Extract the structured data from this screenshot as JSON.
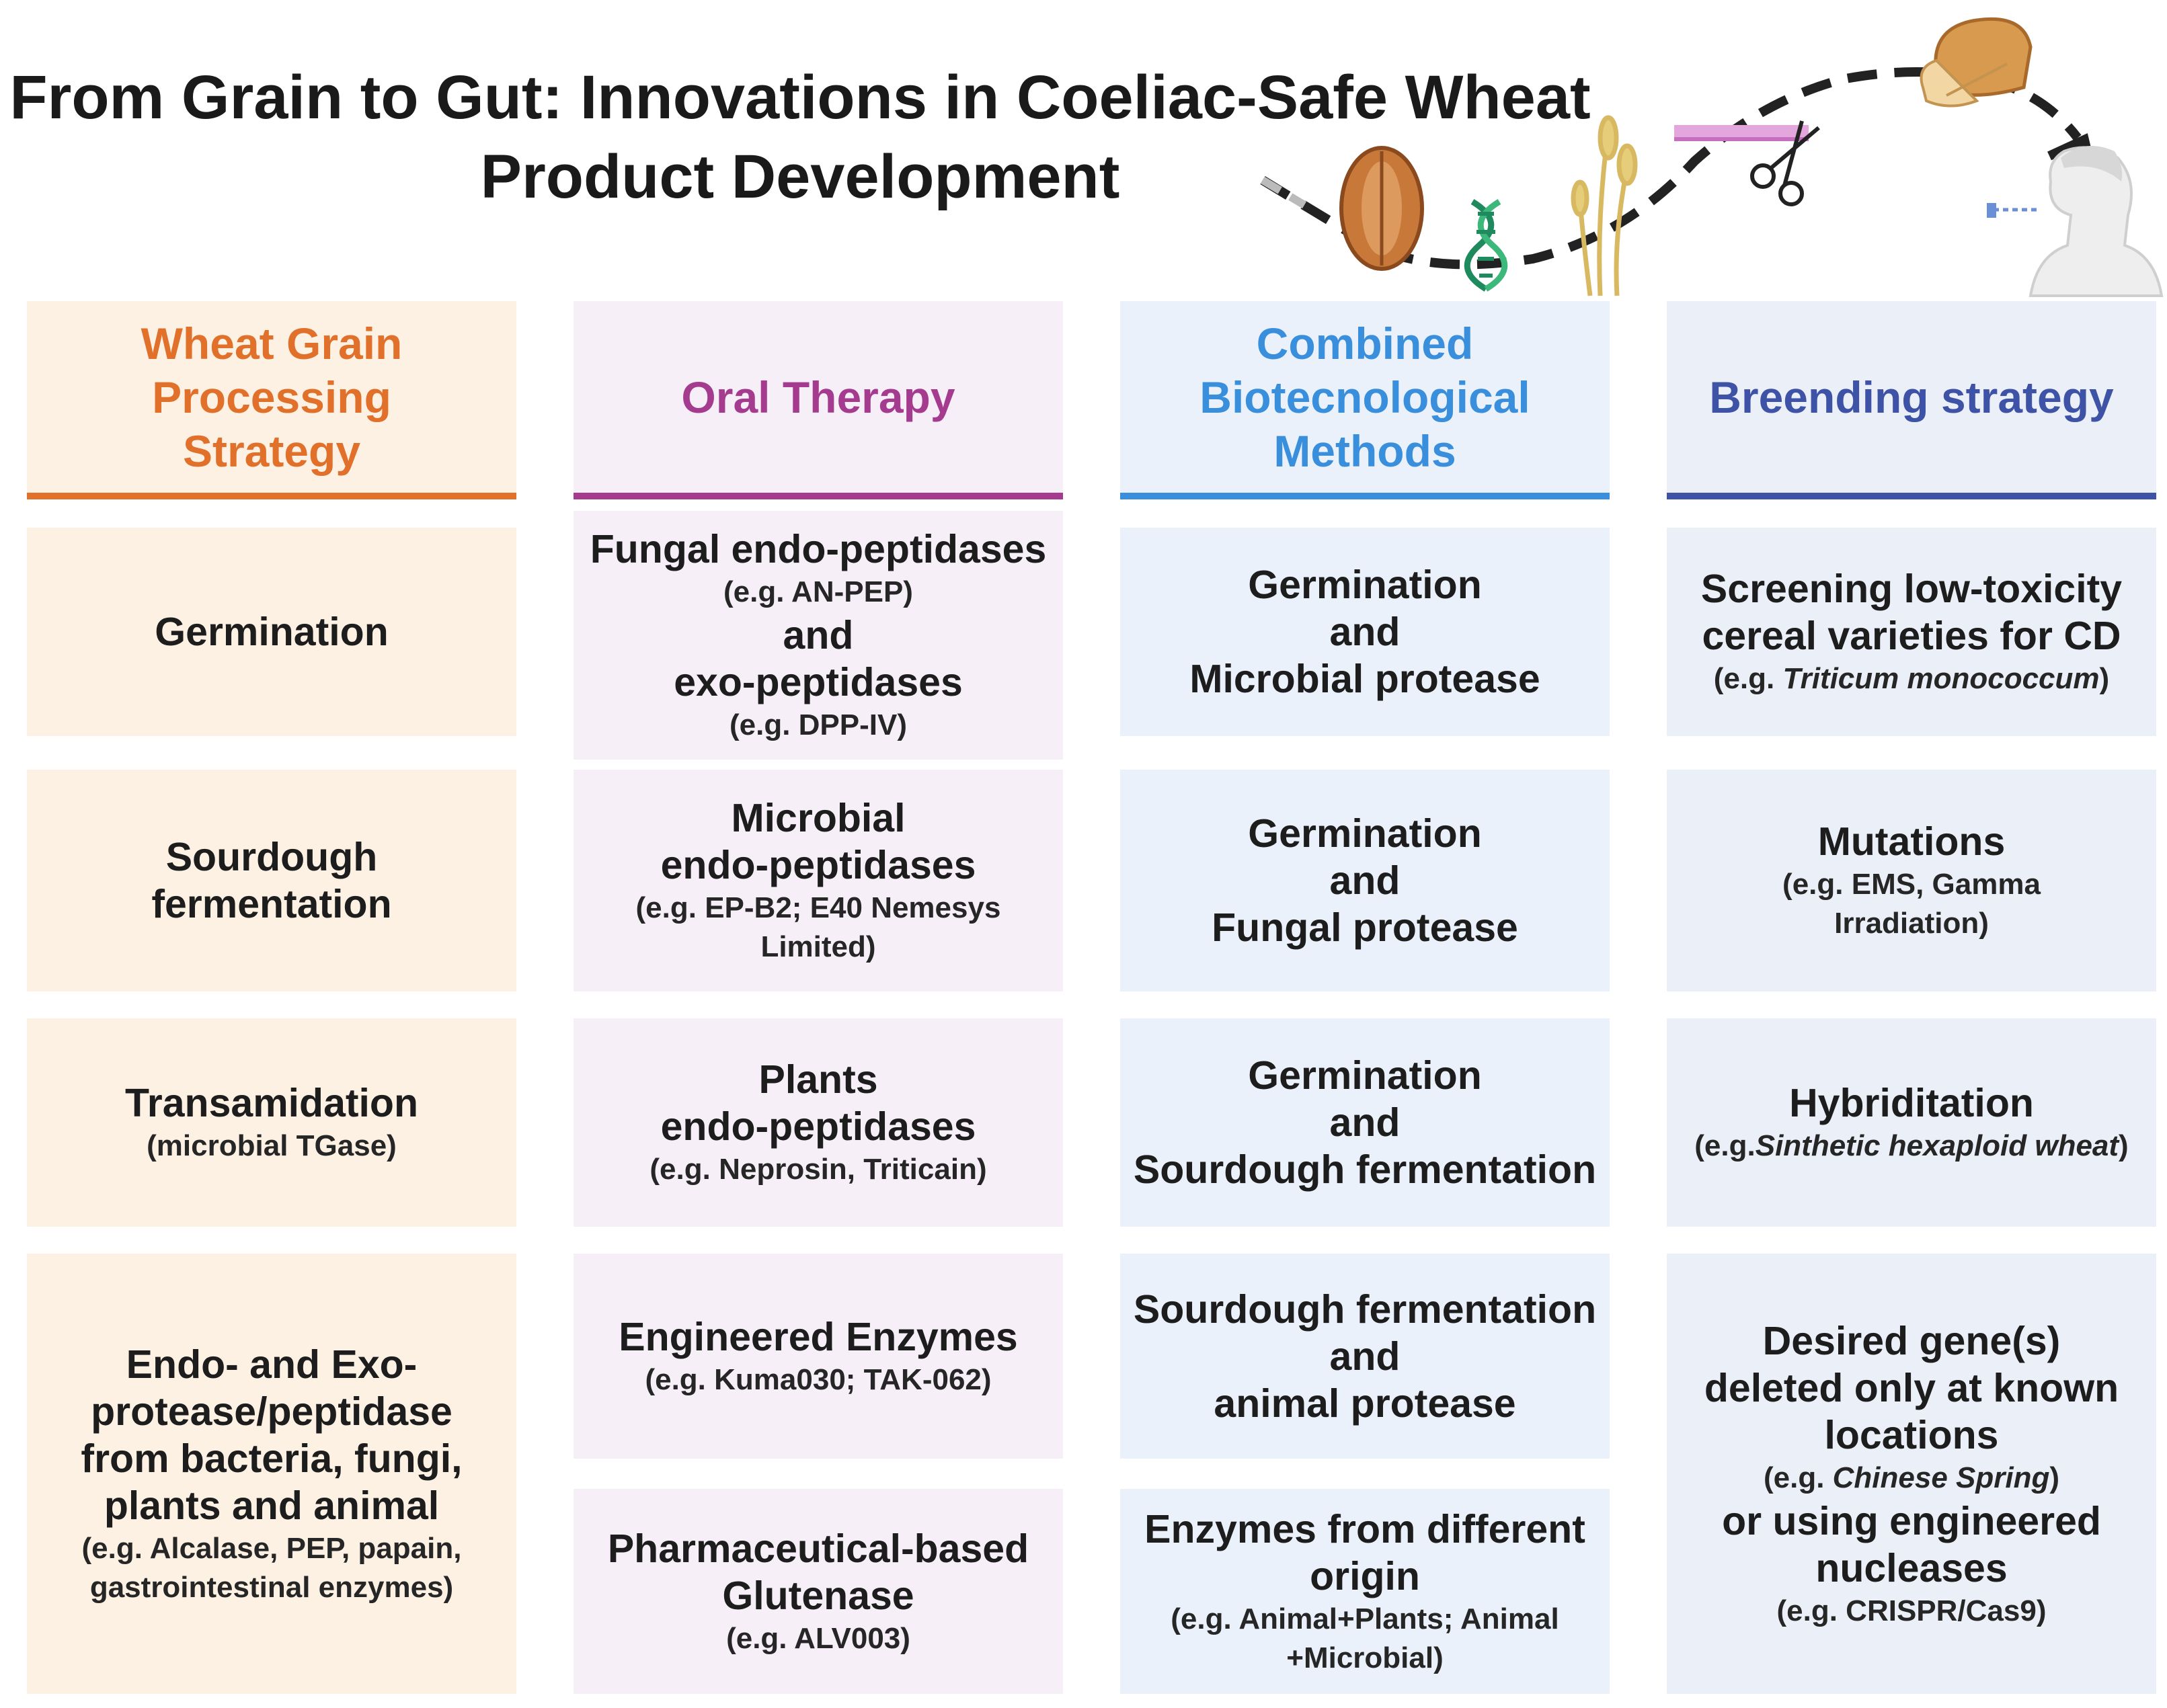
{
  "title": {
    "line1": "From Grain to Gut: Innovations in Coeliac-Safe Wheat",
    "line2": "Product Development"
  },
  "colors": {
    "col1": "#e0702a",
    "col2": "#a43b8f",
    "col3": "#3a8fdc",
    "col4": "#3e52a6"
  },
  "columns": [
    {
      "header": [
        "Wheat Grain",
        "Processing",
        "Strategy"
      ],
      "cells": [
        {
          "main": [
            "Germination"
          ],
          "sub": []
        },
        {
          "main": [
            "Sourdough",
            "fermentation"
          ],
          "sub": []
        },
        {
          "main": [
            "Transamidation"
          ],
          "sub": [
            "(microbial TGase)"
          ]
        },
        {
          "main": [
            "Endo- and Exo-",
            "protease/peptidase",
            "from bacteria, fungi,",
            "plants and animal"
          ],
          "sub": [
            "(e.g. Alcalase, PEP, papain,",
            "gastrointestinal enzymes)"
          ]
        }
      ]
    },
    {
      "header": [
        "Oral Therapy"
      ],
      "cells": [
        {
          "lines": [
            {
              "t": "Fungal endo-peptidases",
              "k": "m"
            },
            {
              "t": "(e.g. AN-PEP)",
              "k": "s"
            },
            {
              "t": "and",
              "k": "m"
            },
            {
              "t": "exo-peptidases",
              "k": "m"
            },
            {
              "t": "(e.g. DPP-IV)",
              "k": "s"
            }
          ]
        },
        {
          "lines": [
            {
              "t": "Microbial",
              "k": "m"
            },
            {
              "t": "endo-peptidases",
              "k": "m"
            },
            {
              "t": "(e.g. EP-B2; E40 Nemesys",
              "k": "s"
            },
            {
              "t": "Limited)",
              "k": "s"
            }
          ]
        },
        {
          "lines": [
            {
              "t": "Plants",
              "k": "m"
            },
            {
              "t": "endo-peptidases",
              "k": "m"
            },
            {
              "t": "(e.g. Neprosin, Triticain)",
              "k": "s"
            }
          ]
        },
        {
          "lines": [
            {
              "t": "Engineered Enzymes",
              "k": "m"
            },
            {
              "t": "(e.g. Kuma030; TAK-062)",
              "k": "s"
            }
          ]
        },
        {
          "lines": [
            {
              "t": "Pharmaceutical-based",
              "k": "m"
            },
            {
              "t": "Glutenase",
              "k": "m"
            },
            {
              "t": "(e.g. ALV003)",
              "k": "s"
            }
          ]
        }
      ]
    },
    {
      "header": [
        "Combined",
        "Biotecnological",
        "Methods"
      ],
      "cells": [
        {
          "lines": [
            {
              "t": "Germination",
              "k": "m"
            },
            {
              "t": "and",
              "k": "m"
            },
            {
              "t": "Microbial protease",
              "k": "m"
            }
          ]
        },
        {
          "lines": [
            {
              "t": "Germination",
              "k": "m"
            },
            {
              "t": "and",
              "k": "m"
            },
            {
              "t": "Fungal protease",
              "k": "m"
            }
          ]
        },
        {
          "lines": [
            {
              "t": "Germination",
              "k": "m"
            },
            {
              "t": "and",
              "k": "m"
            },
            {
              "t": "Sourdough fermentation",
              "k": "m"
            }
          ]
        },
        {
          "lines": [
            {
              "t": "Sourdough fermentation",
              "k": "m"
            },
            {
              "t": "and",
              "k": "m"
            },
            {
              "t": "animal protease",
              "k": "m"
            }
          ]
        },
        {
          "lines": [
            {
              "t": "Enzymes from different",
              "k": "m"
            },
            {
              "t": "origin",
              "k": "m"
            },
            {
              "t": "(e.g. Animal+Plants; Animal",
              "k": "s"
            },
            {
              "t": "+Microbial)",
              "k": "s"
            }
          ]
        }
      ]
    },
    {
      "header": [
        "Breending strategy"
      ],
      "cells": [
        {
          "lines": [
            {
              "t": "Screening low-toxicity",
              "k": "m"
            },
            {
              "t": "cereal varieties for CD",
              "k": "m"
            },
            {
              "pre": "(e.g. ",
              "it": "Triticum monococcum",
              "post": ")",
              "k": "s"
            }
          ]
        },
        {
          "lines": [
            {
              "t": "Mutations",
              "k": "m"
            },
            {
              "t": "(e.g. EMS, Gamma",
              "k": "s"
            },
            {
              "t": "Irradiation)",
              "k": "s"
            }
          ]
        },
        {
          "lines": [
            {
              "t": "Hybriditation",
              "k": "m"
            },
            {
              "pre": "(e.g.",
              "it": "Sinthetic hexaploid wheat",
              "post": ")",
              "k": "s"
            }
          ]
        },
        {
          "lines": [
            {
              "t": "Desired gene(s)",
              "k": "m"
            },
            {
              "t": "deleted only at known",
              "k": "m"
            },
            {
              "t": "locations",
              "k": "m"
            },
            {
              "pre": "(e.g. ",
              "it": "Chinese Spring",
              "post": ")",
              "k": "s"
            },
            {
              "t": "or using engineered",
              "k": "m"
            },
            {
              "t": "nucleases",
              "k": "m"
            },
            {
              "t": "(e.g. CRISPR/Cas9)",
              "k": "s"
            }
          ]
        }
      ]
    }
  ],
  "illustration_icons": [
    "wheat-grain-icon",
    "dna-icon",
    "wheat-plant-icon",
    "scissors-icon",
    "bread-icon",
    "person-eating-icon"
  ]
}
